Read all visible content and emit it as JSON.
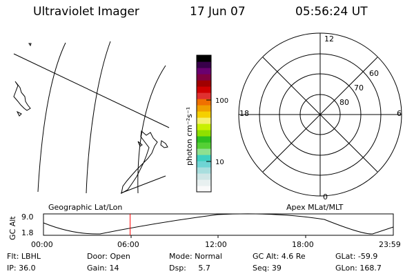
{
  "header": {
    "title": "Ultraviolet Imager",
    "date": "17 Jun 07",
    "time": "05:56:24 UT"
  },
  "colorbar": {
    "label": "photon cm⁻²s⁻¹",
    "ticks": [
      "100",
      "10"
    ],
    "colors": [
      "#fafafa",
      "#e8f0f0",
      "#cfe6e6",
      "#a8dede",
      "#6fd4d4",
      "#3fd0c0",
      "#8fe090",
      "#55d035",
      "#2ec020",
      "#90e000",
      "#c8f000",
      "#f5f070",
      "#f5d000",
      "#f0a000",
      "#f07000",
      "#e03030",
      "#d00000",
      "#a00000",
      "#800040",
      "#6a0070",
      "#38004a",
      "#000000"
    ]
  },
  "map": {
    "left_label": "Geographic Lat/Lon",
    "right_label": "Apex MLat/MLT"
  },
  "polar": {
    "mlt_labels": {
      "top": "12",
      "left": "18",
      "right": "6",
      "bottom": "0"
    },
    "lat_labels": [
      "60",
      "70",
      "80"
    ]
  },
  "altitude_plot": {
    "axis_label": "GC Alt",
    "y_ticks": [
      "9.0",
      "1.8"
    ],
    "x_ticks": [
      "00:00",
      "06:00",
      "12:00",
      "18:00",
      "23:59"
    ],
    "marker_time_hours": 5.94,
    "marker_color": "#ff0000"
  },
  "info": {
    "row1": [
      "Flt: LBHL",
      "Door: Open",
      "Mode: Normal",
      "GC Alt: 4.6 Re",
      "GLat: -59.9"
    ],
    "row2": [
      "IP: 36.0",
      "Gain: 14",
      "Dsp:     5.7",
      "Seq: 39",
      "GLon: 168.7"
    ]
  }
}
